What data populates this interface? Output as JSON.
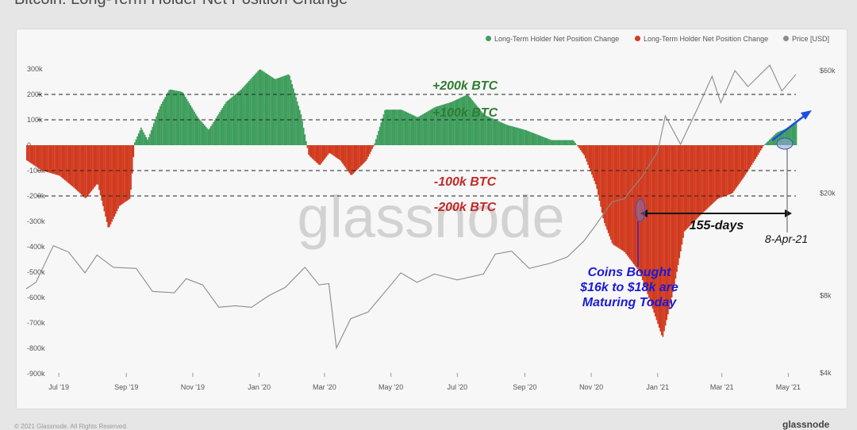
{
  "title": "Bitcoin: Long-Term Holder Net Position Change",
  "footer_left": "© 2021 Glassnode. All Rights Reserved.",
  "footer_right": "glassnode",
  "watermark": "glassnode",
  "legend": [
    {
      "label": "Long-Term Holder Net Position Change",
      "color": "#3f9e5d"
    },
    {
      "label": "Long-Term Holder Net Position Change",
      "color": "#d13b1f"
    },
    {
      "label": "Price [USD]",
      "color": "#8c8c8c"
    }
  ],
  "annotations": {
    "plus200": "+200k BTC",
    "plus100": "+100k BTC",
    "minus100": "-100k BTC",
    "minus200": "-200k BTC",
    "days": "155-days",
    "date": "8-Apr-21",
    "coins_line1": "Coins Bought",
    "coins_line2": "$16k to $18k are",
    "coins_line3": "Maturing Today"
  },
  "chart_data": {
    "type": "area",
    "title": "Bitcoin: Long-Term Holder Net Position Change",
    "x_ticks": [
      "Jul '19",
      "Sep '19",
      "Nov '19",
      "Jan '20",
      "Mar '20",
      "May '20",
      "Jul '20",
      "Sep '20",
      "Nov '20",
      "Jan '21",
      "Mar '21",
      "May '21"
    ],
    "x_range": [
      "2019-06-01",
      "2021-05-08"
    ],
    "y_left_ticks": [
      "300k",
      "200k",
      "100k",
      "0",
      "-100k",
      "-200k",
      "-300k",
      "-400k",
      "-500k",
      "-600k",
      "-700k",
      "-800k",
      "-900k"
    ],
    "y_left_range": [
      -900000,
      300000
    ],
    "y_right_ticks": [
      "$60k",
      "$20k",
      "$8k",
      "$4k"
    ],
    "y_right_scale": "log",
    "y_right_range": [
      4000,
      60000
    ],
    "reference_lines": [
      200000,
      100000,
      -100000,
      -200000
    ],
    "series": [
      {
        "name": "Long-Term Holder Net Position Change",
        "color_positive": "#3f9e5d",
        "color_negative": "#d13b1f",
        "points": [
          [
            "2019-06-01",
            -60000
          ],
          [
            "2019-06-15",
            -100000
          ],
          [
            "2019-07-01",
            -120000
          ],
          [
            "2019-07-15",
            -170000
          ],
          [
            "2019-07-25",
            -210000
          ],
          [
            "2019-08-05",
            -150000
          ],
          [
            "2019-08-15",
            -330000
          ],
          [
            "2019-08-25",
            -240000
          ],
          [
            "2019-09-04",
            -210000
          ],
          [
            "2019-09-08",
            10000
          ],
          [
            "2019-09-14",
            70000
          ],
          [
            "2019-09-20",
            20000
          ],
          [
            "2019-10-01",
            150000
          ],
          [
            "2019-10-10",
            220000
          ],
          [
            "2019-10-22",
            210000
          ],
          [
            "2019-11-05",
            110000
          ],
          [
            "2019-11-15",
            60000
          ],
          [
            "2019-12-01",
            170000
          ],
          [
            "2019-12-15",
            220000
          ],
          [
            "2020-01-01",
            300000
          ],
          [
            "2020-01-15",
            260000
          ],
          [
            "2020-01-28",
            280000
          ],
          [
            "2020-02-08",
            120000
          ],
          [
            "2020-02-15",
            -40000
          ],
          [
            "2020-02-25",
            -80000
          ],
          [
            "2020-03-05",
            -30000
          ],
          [
            "2020-03-15",
            -60000
          ],
          [
            "2020-03-25",
            -120000
          ],
          [
            "2020-04-08",
            -60000
          ],
          [
            "2020-04-15",
            0
          ],
          [
            "2020-04-25",
            140000
          ],
          [
            "2020-05-10",
            140000
          ],
          [
            "2020-05-25",
            110000
          ],
          [
            "2020-06-10",
            150000
          ],
          [
            "2020-06-25",
            170000
          ],
          [
            "2020-07-10",
            200000
          ],
          [
            "2020-07-25",
            120000
          ],
          [
            "2020-08-15",
            80000
          ],
          [
            "2020-09-01",
            60000
          ],
          [
            "2020-09-25",
            20000
          ],
          [
            "2020-10-15",
            20000
          ],
          [
            "2020-10-25",
            -40000
          ],
          [
            "2020-11-05",
            -160000
          ],
          [
            "2020-11-12",
            -300000
          ],
          [
            "2020-11-20",
            -390000
          ],
          [
            "2020-12-01",
            -420000
          ],
          [
            "2020-12-15",
            -500000
          ],
          [
            "2020-12-25",
            -620000
          ],
          [
            "2021-01-05",
            -760000
          ],
          [
            "2021-01-15",
            -570000
          ],
          [
            "2021-01-25",
            -340000
          ],
          [
            "2021-02-10",
            -270000
          ],
          [
            "2021-02-25",
            -210000
          ],
          [
            "2021-03-10",
            -190000
          ],
          [
            "2021-03-20",
            -130000
          ],
          [
            "2021-04-01",
            -50000
          ],
          [
            "2021-04-08",
            0
          ],
          [
            "2021-04-20",
            50000
          ],
          [
            "2021-05-01",
            70000
          ],
          [
            "2021-05-08",
            90000
          ]
        ]
      },
      {
        "name": "Price [USD]",
        "color": "#8c8c8c",
        "points": [
          [
            "2019-06-01",
            8500
          ],
          [
            "2019-06-10",
            9000
          ],
          [
            "2019-06-26",
            12500
          ],
          [
            "2019-07-10",
            11800
          ],
          [
            "2019-07-25",
            9800
          ],
          [
            "2019-08-05",
            11500
          ],
          [
            "2019-08-20",
            10300
          ],
          [
            "2019-09-10",
            10200
          ],
          [
            "2019-09-25",
            8300
          ],
          [
            "2019-10-15",
            8200
          ],
          [
            "2019-10-26",
            9300
          ],
          [
            "2019-11-10",
            8800
          ],
          [
            "2019-11-25",
            7200
          ],
          [
            "2019-12-10",
            7300
          ],
          [
            "2019-12-25",
            7200
          ],
          [
            "2020-01-10",
            8000
          ],
          [
            "2020-01-25",
            8600
          ],
          [
            "2020-02-12",
            10300
          ],
          [
            "2020-02-25",
            8800
          ],
          [
            "2020-03-05",
            8900
          ],
          [
            "2020-03-12",
            5000
          ],
          [
            "2020-03-25",
            6500
          ],
          [
            "2020-04-10",
            6900
          ],
          [
            "2020-04-30",
            8700
          ],
          [
            "2020-05-10",
            9800
          ],
          [
            "2020-05-25",
            9000
          ],
          [
            "2020-06-10",
            9700
          ],
          [
            "2020-07-01",
            9200
          ],
          [
            "2020-07-25",
            9700
          ],
          [
            "2020-08-05",
            11600
          ],
          [
            "2020-08-20",
            11900
          ],
          [
            "2020-09-05",
            10200
          ],
          [
            "2020-09-25",
            10700
          ],
          [
            "2020-10-10",
            11300
          ],
          [
            "2020-10-25",
            13000
          ],
          [
            "2020-11-05",
            15000
          ],
          [
            "2020-11-20",
            18500
          ],
          [
            "2020-12-01",
            19000
          ],
          [
            "2020-12-17",
            23000
          ],
          [
            "2021-01-01",
            29000
          ],
          [
            "2021-01-08",
            40000
          ],
          [
            "2021-01-22",
            31000
          ],
          [
            "2021-02-08",
            44000
          ],
          [
            "2021-02-20",
            57000
          ],
          [
            "2021-02-28",
            45000
          ],
          [
            "2021-03-13",
            60000
          ],
          [
            "2021-03-25",
            52000
          ],
          [
            "2021-04-14",
            63000
          ],
          [
            "2021-04-25",
            50000
          ],
          [
            "2021-05-08",
            58000
          ]
        ]
      }
    ]
  }
}
